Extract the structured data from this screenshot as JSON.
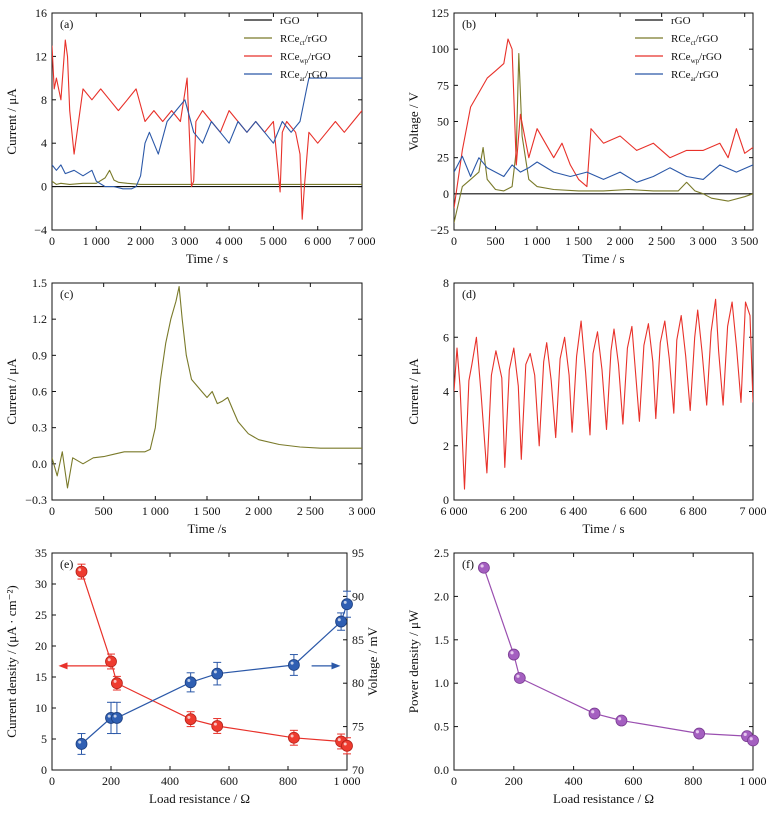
{
  "chart_data": [
    {
      "type": "line",
      "panel": "(a)",
      "xlabel": "Time / s",
      "ylabel": "Current / μA",
      "xlim": [
        0,
        7000
      ],
      "ylim": [
        -4,
        16
      ],
      "xticks": [
        0,
        1000,
        2000,
        3000,
        4000,
        5000,
        6000,
        7000
      ],
      "xtick_labels": [
        "0",
        "1 000",
        "2 000",
        "3 000",
        "4 000",
        "5 000",
        "6 000",
        "7 000"
      ],
      "yticks": [
        -4,
        0,
        4,
        8,
        12,
        16
      ],
      "ytick_labels": [
        "−4",
        "0",
        "4",
        "8",
        "12",
        "16"
      ],
      "legend": "top-right",
      "series": [
        {
          "name": "rGO",
          "color": "#111111",
          "x": [
            0,
            7000
          ],
          "y": [
            0,
            0
          ]
        },
        {
          "name": "RCe_ct/rGO",
          "color": "#7a7a2a",
          "x": [
            0,
            100,
            200,
            400,
            700,
            1000,
            1200,
            1300,
            1400,
            1500,
            1700,
            2000,
            3000,
            4000,
            5000,
            6000,
            7000
          ],
          "y": [
            0.5,
            0.2,
            0.3,
            0.2,
            0.3,
            0.3,
            0.8,
            1.5,
            0.6,
            0.4,
            0.3,
            0.2,
            0.2,
            0.2,
            0.2,
            0.2,
            0.2
          ]
        },
        {
          "name": "RCe_wp/rGO",
          "color": "#e8312a",
          "x": [
            0,
            50,
            100,
            200,
            300,
            350,
            400,
            500,
            700,
            900,
            1100,
            1300,
            1500,
            1700,
            1900,
            2100,
            2300,
            2500,
            2700,
            2900,
            3050,
            3150,
            3200,
            3250,
            3400,
            3600,
            3800,
            4000,
            4200,
            4400,
            4600,
            4800,
            5000,
            5150,
            5200,
            5300,
            5500,
            5600,
            5650,
            5700,
            5800,
            6000,
            6200,
            6400,
            6600,
            6800,
            7000
          ],
          "y": [
            13,
            9,
            10,
            8,
            13.5,
            12,
            7,
            3,
            9,
            8,
            9,
            8,
            7,
            8,
            9,
            6,
            7,
            6,
            7,
            6,
            10,
            0,
            0.5,
            6,
            7,
            6,
            5,
            7,
            6,
            5,
            6,
            5,
            6,
            -0.5,
            5,
            6,
            5,
            3,
            -3,
            0,
            5,
            4,
            5,
            6,
            5,
            6,
            7
          ]
        },
        {
          "name": "RCe_ar/rGO",
          "color": "#2b58a8",
          "x": [
            0,
            100,
            200,
            300,
            500,
            700,
            900,
            1000,
            1200,
            1400,
            1600,
            1800,
            1900,
            2000,
            2100,
            2200,
            2400,
            2600,
            2800,
            3000,
            3200,
            3400,
            3600,
            3800,
            4000,
            4200,
            4400,
            4600,
            4800,
            5000,
            5200,
            5400,
            5600,
            5700,
            5750,
            5800,
            5900,
            6000,
            6500,
            7000
          ],
          "y": [
            2,
            1.5,
            2,
            1.2,
            1.5,
            1,
            1.5,
            0.5,
            0,
            0,
            -0.2,
            -0.2,
            0,
            1,
            4,
            5,
            3,
            6,
            7,
            8,
            5,
            4,
            6,
            5,
            4,
            6,
            5,
            6,
            5,
            4,
            6,
            5,
            6,
            8,
            9,
            10,
            10,
            10,
            10,
            10
          ]
        }
      ]
    },
    {
      "type": "line",
      "panel": "(b)",
      "xlabel": "Time / s",
      "ylabel": "Voltage / V",
      "xlim": [
        0,
        3600
      ],
      "ylim": [
        -25,
        125
      ],
      "xticks": [
        0,
        500,
        1000,
        1500,
        2000,
        2500,
        3000,
        3500
      ],
      "xtick_labels": [
        "0",
        "500",
        "1 000",
        "1 500",
        "2 000",
        "2 500",
        "3 000",
        "3 500"
      ],
      "yticks": [
        -25,
        0,
        25,
        50,
        75,
        100,
        125
      ],
      "ytick_labels": [
        "−25",
        "0",
        "25",
        "50",
        "75",
        "100",
        "125"
      ],
      "legend": "top-right",
      "series": [
        {
          "name": "rGO",
          "color": "#111111",
          "x": [
            0,
            3600
          ],
          "y": [
            0,
            0
          ]
        },
        {
          "name": "RCe_ct/rGO",
          "color": "#7a7a2a",
          "x": [
            0,
            100,
            200,
            300,
            350,
            400,
            500,
            600,
            700,
            750,
            780,
            820,
            900,
            1000,
            1200,
            1500,
            1800,
            2100,
            2400,
            2700,
            2800,
            2900,
            3000,
            3100,
            3300,
            3500,
            3600
          ],
          "y": [
            -20,
            5,
            10,
            15,
            32,
            10,
            3,
            2,
            5,
            30,
            97,
            40,
            10,
            5,
            3,
            2,
            2,
            3,
            2,
            2,
            8,
            2,
            0,
            -3,
            -5,
            -2,
            0
          ]
        },
        {
          "name": "RCe_wp/rGO",
          "color": "#e8312a",
          "x": [
            0,
            100,
            200,
            300,
            400,
            500,
            600,
            650,
            700,
            750,
            800,
            900,
            1000,
            1100,
            1200,
            1300,
            1400,
            1500,
            1600,
            1650,
            1800,
            2000,
            2200,
            2400,
            2600,
            2800,
            3000,
            3200,
            3300,
            3400,
            3500,
            3600
          ],
          "y": [
            -10,
            30,
            60,
            70,
            80,
            85,
            90,
            107,
            100,
            20,
            55,
            25,
            45,
            35,
            25,
            35,
            20,
            10,
            5,
            45,
            35,
            40,
            30,
            35,
            25,
            30,
            30,
            35,
            25,
            45,
            28,
            32
          ]
        },
        {
          "name": "RCe_ar/rGO",
          "color": "#2b58a8",
          "x": [
            0,
            100,
            200,
            300,
            400,
            500,
            600,
            700,
            800,
            900,
            1000,
            1200,
            1400,
            1600,
            1800,
            2000,
            2200,
            2400,
            2600,
            2800,
            3000,
            3200,
            3400,
            3600
          ],
          "y": [
            15,
            26,
            12,
            25,
            18,
            15,
            12,
            20,
            15,
            18,
            22,
            15,
            12,
            15,
            10,
            15,
            8,
            12,
            18,
            12,
            10,
            20,
            15,
            20
          ]
        }
      ]
    },
    {
      "type": "line",
      "panel": "(c)",
      "xlabel": "Time /s",
      "ylabel": "Current / μA",
      "xlim": [
        0,
        3000
      ],
      "ylim": [
        -0.3,
        1.5
      ],
      "xticks": [
        0,
        500,
        1000,
        1500,
        2000,
        2500,
        3000
      ],
      "xtick_labels": [
        "0",
        "500",
        "1 000",
        "1 500",
        "2 000",
        "2 500",
        "3 000"
      ],
      "yticks": [
        -0.3,
        0,
        0.3,
        0.6,
        0.9,
        1.2,
        1.5
      ],
      "ytick_labels": [
        "−0.3",
        "0.0",
        "0.3",
        "0.6",
        "0.9",
        "1.2",
        "1.5"
      ],
      "series": [
        {
          "name": "",
          "color": "#7a7a2a",
          "x": [
            0,
            50,
            100,
            150,
            200,
            300,
            400,
            500,
            600,
            700,
            800,
            900,
            950,
            1000,
            1050,
            1100,
            1150,
            1200,
            1230,
            1260,
            1300,
            1350,
            1400,
            1450,
            1500,
            1550,
            1600,
            1650,
            1700,
            1750,
            1800,
            1900,
            2000,
            2200,
            2400,
            2600,
            2800,
            3000
          ],
          "y": [
            0.05,
            -0.1,
            0.1,
            -0.2,
            0.05,
            0.0,
            0.05,
            0.06,
            0.08,
            0.1,
            0.1,
            0.1,
            0.12,
            0.3,
            0.7,
            1.0,
            1.2,
            1.35,
            1.47,
            1.2,
            0.9,
            0.7,
            0.65,
            0.6,
            0.55,
            0.6,
            0.5,
            0.52,
            0.55,
            0.45,
            0.35,
            0.25,
            0.2,
            0.16,
            0.14,
            0.13,
            0.13,
            0.13
          ]
        }
      ]
    },
    {
      "type": "line",
      "panel": "(d)",
      "xlabel": "Time / s",
      "ylabel": "Current / μA",
      "xlim": [
        6000,
        7000
      ],
      "ylim": [
        0,
        8
      ],
      "xticks": [
        6000,
        6200,
        6400,
        6600,
        6800,
        7000
      ],
      "xtick_labels": [
        "6 000",
        "6 200",
        "6 400",
        "6 600",
        "6 800",
        "7 000"
      ],
      "yticks": [
        0,
        2,
        4,
        6,
        8
      ],
      "ytick_labels": [
        "0",
        "2",
        "4",
        "6",
        "8"
      ],
      "series": [
        {
          "name": "",
          "color": "#e8312a",
          "x": [
            6000,
            6010,
            6020,
            6035,
            6050,
            6060,
            6075,
            6090,
            6110,
            6125,
            6140,
            6160,
            6170,
            6185,
            6200,
            6215,
            6225,
            6240,
            6255,
            6270,
            6285,
            6300,
            6310,
            6325,
            6340,
            6355,
            6370,
            6385,
            6395,
            6410,
            6425,
            6440,
            6455,
            6465,
            6480,
            6495,
            6510,
            6525,
            6535,
            6550,
            6565,
            6580,
            6595,
            6605,
            6620,
            6635,
            6650,
            6665,
            6675,
            6690,
            6705,
            6720,
            6735,
            6745,
            6760,
            6775,
            6790,
            6805,
            6815,
            6830,
            6845,
            6860,
            6875,
            6885,
            6900,
            6915,
            6930,
            6945,
            6960,
            6975,
            6990,
            7000
          ],
          "y": [
            4.0,
            5.6,
            4.2,
            0.4,
            4.4,
            5.0,
            6.0,
            4.0,
            1.0,
            4.6,
            5.5,
            4.5,
            1.2,
            4.8,
            5.6,
            4.2,
            1.5,
            5.0,
            5.4,
            4.6,
            2.0,
            5.1,
            5.8,
            4.4,
            2.3,
            5.2,
            6.0,
            4.6,
            2.5,
            5.3,
            6.6,
            4.7,
            2.4,
            5.4,
            6.2,
            4.8,
            2.6,
            5.5,
            6.3,
            5.0,
            2.8,
            5.6,
            6.4,
            5.0,
            2.9,
            5.7,
            6.5,
            5.1,
            3.0,
            5.8,
            6.6,
            5.2,
            3.2,
            5.9,
            6.8,
            5.3,
            3.3,
            6.0,
            7.0,
            5.4,
            3.5,
            6.2,
            7.4,
            5.5,
            3.5,
            6.4,
            7.3,
            5.6,
            3.6,
            7.3,
            6.8,
            3.6
          ]
        }
      ]
    },
    {
      "type": "scatter",
      "panel": "(e)",
      "xlabel": "Load resistance / Ω",
      "ylabel": "Current density / (μA · cm⁻²)",
      "y2label": "Voltage / mV",
      "xlim": [
        0,
        1000
      ],
      "ylim": [
        0,
        35
      ],
      "y2lim": [
        70,
        95
      ],
      "xticks": [
        0,
        200,
        400,
        600,
        800,
        1000
      ],
      "xtick_labels": [
        "0",
        "200",
        "400",
        "600",
        "800",
        "1 000"
      ],
      "yticks": [
        0,
        5,
        10,
        15,
        20,
        25,
        30,
        35
      ],
      "ytick_labels": [
        "0",
        "5",
        "10",
        "15",
        "20",
        "25",
        "30",
        "35"
      ],
      "y2ticks": [
        70,
        75,
        80,
        85,
        90,
        95
      ],
      "y2tick_labels": [
        "70",
        "75",
        "80",
        "85",
        "90",
        "95"
      ],
      "x": [
        100,
        200,
        220,
        470,
        560,
        820,
        980,
        1000
      ],
      "series": [
        {
          "name": "",
          "axis": "left",
          "color": "#e8312a",
          "values": [
            32,
            17.5,
            14,
            8.2,
            7.1,
            5.2,
            4.6,
            3.9
          ],
          "errors": [
            1.2,
            1.2,
            1.1,
            1.2,
            1.2,
            1.2,
            1.2,
            1.3
          ]
        },
        {
          "name": "",
          "axis": "right",
          "color": "#2b58a8",
          "values": [
            73,
            76,
            76,
            80.1,
            81.1,
            82.1,
            87.1,
            89.1
          ],
          "errors": [
            1.2,
            1.8,
            1.8,
            1.1,
            1.3,
            1.2,
            1.0,
            1.5
          ]
        }
      ]
    },
    {
      "type": "line",
      "panel": "(f)",
      "xlabel": "Load resistance / Ω",
      "ylabel": "Power density / μW",
      "xlim": [
        0,
        1000
      ],
      "ylim": [
        0,
        2.5
      ],
      "xticks": [
        0,
        200,
        400,
        600,
        800,
        1000
      ],
      "xtick_labels": [
        "0",
        "200",
        "400",
        "600",
        "800",
        "1 000"
      ],
      "yticks": [
        0,
        0.5,
        1.0,
        1.5,
        2.0,
        2.5
      ],
      "ytick_labels": [
        "0.0",
        "0.5",
        "1.0",
        "1.5",
        "2.0",
        "2.5"
      ],
      "series": [
        {
          "name": "",
          "color": "#9a4fb0",
          "x": [
            100,
            200,
            220,
            470,
            560,
            820,
            980,
            1000
          ],
          "y": [
            2.33,
            1.33,
            1.06,
            0.65,
            0.57,
            0.42,
            0.39,
            0.34
          ]
        }
      ]
    }
  ]
}
